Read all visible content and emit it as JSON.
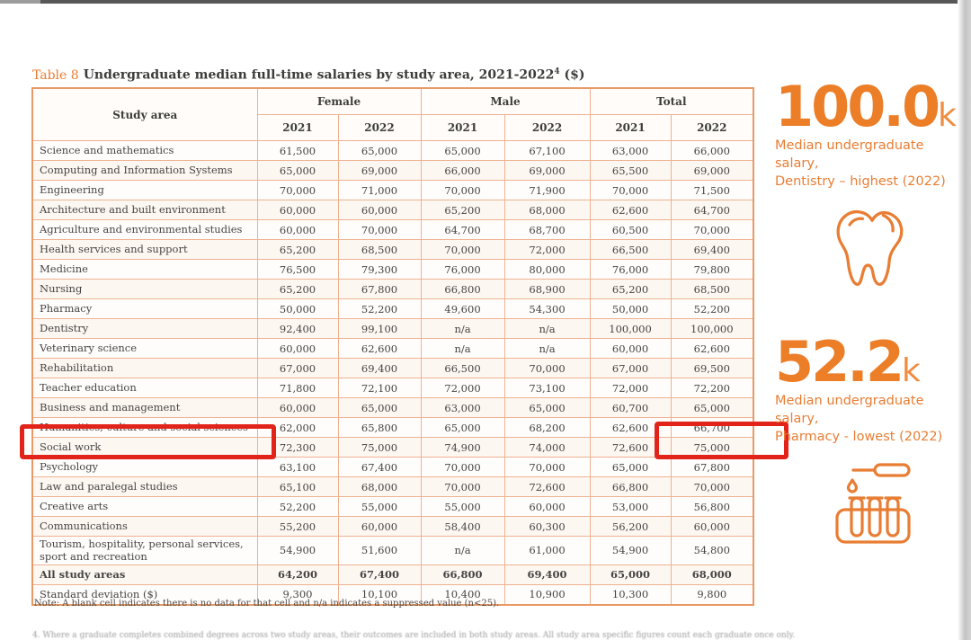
{
  "page": {
    "title_prefix": "Table 8",
    "title_main": "Undergraduate median full-time salaries by study area, 2021-2022",
    "title_superscript": "4",
    "title_suffix": " ($)",
    "note": "Note: A blank cell indicates there is no data for that cell and n/a indicates a suppressed value (n<25).",
    "footnote": "4. Where a graduate completes combined degrees across two study areas, their outcomes are included in both study areas. All study area specific figures count each graduate once only."
  },
  "colors": {
    "accent_orange": "#e87d33",
    "table_border": "#eeb292",
    "highlight_red": "#e2231a",
    "text_dark": "#454543"
  },
  "table": {
    "header": {
      "study_area": "Study area",
      "groups": [
        "Female",
        "Male",
        "Total"
      ],
      "years": [
        "2021",
        "2022"
      ]
    },
    "rows": [
      {
        "label": "Science and mathematics",
        "values": [
          "61,500",
          "65,000",
          "65,000",
          "67,100",
          "63,000",
          "66,000"
        ],
        "bold": false
      },
      {
        "label": "Computing and Information Systems",
        "values": [
          "65,000",
          "69,000",
          "66,000",
          "69,000",
          "65,500",
          "69,000"
        ],
        "bold": false
      },
      {
        "label": "Engineering",
        "values": [
          "70,000",
          "71,000",
          "70,000",
          "71,900",
          "70,000",
          "71,500"
        ],
        "bold": false
      },
      {
        "label": "Architecture and built environment",
        "values": [
          "60,000",
          "60,000",
          "65,200",
          "68,000",
          "62,600",
          "64,700"
        ],
        "bold": false
      },
      {
        "label": "Agriculture and environmental studies",
        "values": [
          "60,000",
          "70,000",
          "64,700",
          "68,700",
          "60,500",
          "70,000"
        ],
        "bold": false
      },
      {
        "label": "Health services and support",
        "values": [
          "65,200",
          "68,500",
          "70,000",
          "72,000",
          "66,500",
          "69,400"
        ],
        "bold": false
      },
      {
        "label": "Medicine",
        "values": [
          "76,500",
          "79,300",
          "76,000",
          "80,000",
          "76,000",
          "79,800"
        ],
        "bold": false
      },
      {
        "label": "Nursing",
        "values": [
          "65,200",
          "67,800",
          "66,800",
          "68,900",
          "65,200",
          "68,500"
        ],
        "bold": false
      },
      {
        "label": "Pharmacy",
        "values": [
          "50,000",
          "52,200",
          "49,600",
          "54,300",
          "50,000",
          "52,200"
        ],
        "bold": false
      },
      {
        "label": "Dentistry",
        "values": [
          "92,400",
          "99,100",
          "n/a",
          "n/a",
          "100,000",
          "100,000"
        ],
        "bold": false
      },
      {
        "label": "Veterinary science",
        "values": [
          "60,000",
          "62,600",
          "n/a",
          "n/a",
          "60,000",
          "62,600"
        ],
        "bold": false
      },
      {
        "label": "Rehabilitation",
        "values": [
          "67,000",
          "69,400",
          "66,500",
          "70,000",
          "67,000",
          "69,500"
        ],
        "bold": false
      },
      {
        "label": "Teacher education",
        "values": [
          "71,800",
          "72,100",
          "72,000",
          "73,100",
          "72,000",
          "72,200"
        ],
        "bold": false
      },
      {
        "label": "Business and management",
        "values": [
          "60,000",
          "65,000",
          "63,000",
          "65,000",
          "60,700",
          "65,000"
        ],
        "bold": false
      },
      {
        "label": "Humanities, culture and social sciences",
        "values": [
          "62,000",
          "65,800",
          "65,000",
          "68,200",
          "62,600",
          "66,700"
        ],
        "bold": false
      },
      {
        "label": "Social work",
        "values": [
          "72,300",
          "75,000",
          "74,900",
          "74,000",
          "72,600",
          "75,000"
        ],
        "bold": false,
        "highlighted": true
      },
      {
        "label": "Psychology",
        "values": [
          "63,100",
          "67,400",
          "70,000",
          "70,000",
          "65,000",
          "67,800"
        ],
        "bold": false
      },
      {
        "label": "Law and paralegal studies",
        "values": [
          "65,100",
          "68,000",
          "70,000",
          "72,600",
          "66,800",
          "70,000"
        ],
        "bold": false
      },
      {
        "label": "Creative arts",
        "values": [
          "52,200",
          "55,000",
          "55,000",
          "60,000",
          "53,000",
          "56,800"
        ],
        "bold": false
      },
      {
        "label": "Communications",
        "values": [
          "55,200",
          "60,000",
          "58,400",
          "60,300",
          "56,200",
          "60,000"
        ],
        "bold": false
      },
      {
        "label": "Tourism, hospitality, personal services, sport and recreation",
        "values": [
          "54,900",
          "51,600",
          "n/a",
          "61,000",
          "54,900",
          "54,800"
        ],
        "bold": false
      },
      {
        "label": "All study areas",
        "values": [
          "64,200",
          "67,400",
          "66,800",
          "69,400",
          "65,000",
          "68,000"
        ],
        "bold": true
      },
      {
        "label": "Standard deviation ($)",
        "values": [
          "9,300",
          "10,100",
          "10,400",
          "10,900",
          "10,300",
          "9,800"
        ],
        "bold": false
      }
    ]
  },
  "stats": [
    {
      "value": "100.0",
      "unit": "k",
      "line1": "Median undergraduate salary,",
      "line2": "Dentistry – highest (2022)",
      "icon": "tooth-icon"
    },
    {
      "value": "52.2",
      "unit": "k",
      "line1": "Median undergraduate salary,",
      "line2": "Pharmacy - lowest (2022)",
      "icon": "test-tubes-icon"
    }
  ]
}
